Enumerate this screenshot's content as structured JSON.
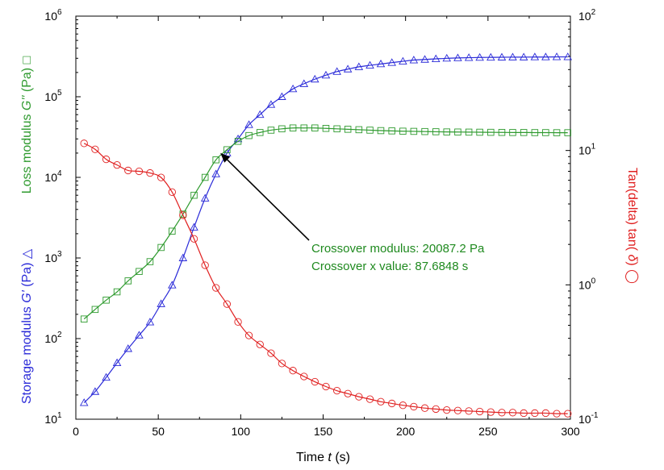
{
  "chart_data": {
    "type": "scatter",
    "x_axis": {
      "label_prefix": "Time ",
      "label_var": "t",
      "label_suffix": " (s)",
      "range": [
        0,
        300
      ],
      "ticks": [
        0,
        50,
        100,
        150,
        200,
        250,
        300
      ],
      "tick_labels": [
        "0",
        "50",
        "100",
        "150",
        "200",
        "250",
        "300"
      ]
    },
    "y_left_axis": {
      "scale": "log",
      "range": [
        10,
        1000000
      ],
      "tick_bases": [
        "10",
        "10",
        "10",
        "10",
        "10",
        "10"
      ],
      "tick_exps": [
        "1",
        "2",
        "3",
        "4",
        "5",
        "6"
      ],
      "label_storage_prefix": "Storage modulus ",
      "label_storage_var": "G'",
      "label_storage_suffix": " (Pa) △",
      "label_loss_prefix": "Loss modulus ",
      "label_loss_var": "G''",
      "label_loss_suffix": " (Pa) □"
    },
    "y_right_axis": {
      "scale": "log",
      "range": [
        0.1,
        100
      ],
      "tick_bases": [
        "10",
        "10",
        "10",
        "10"
      ],
      "tick_exps": [
        "-1",
        "0",
        "1",
        "2"
      ],
      "label_prefix": "Tan(delta) tan( ",
      "label_var": "δ",
      "label_suffix": ")  ◯"
    },
    "series": [
      {
        "marker": "triangle",
        "color": "#2a2ad8",
        "axis": "left",
        "x": [
          5,
          11.7,
          18.4,
          25,
          31.7,
          38.4,
          45,
          51.7,
          58.4,
          65,
          71.7,
          78.4,
          85,
          91.7,
          98.4,
          105,
          111.7,
          118.4,
          125,
          131.7,
          138.4,
          145,
          151.7,
          158.4,
          165,
          171.7,
          178.4,
          185,
          191.7,
          198.4,
          205,
          211.7,
          218.4,
          225,
          231.7,
          238.4,
          245,
          251.7,
          258.4,
          265,
          271.7,
          278.4,
          285,
          291.7,
          298.4
        ],
        "values": [
          16,
          22,
          33,
          50,
          75,
          110,
          160,
          270,
          460,
          1000,
          2400,
          5500,
          11000,
          20000,
          30000,
          45000,
          60000,
          80000,
          100000,
          125000,
          145000,
          165000,
          185000,
          205000,
          220000,
          235000,
          245000,
          255000,
          265000,
          275000,
          285000,
          290000,
          295000,
          300000,
          303000,
          305000,
          307000,
          308000,
          309000,
          310000,
          310000,
          311000,
          311000,
          312000,
          312000
        ]
      },
      {
        "marker": "square",
        "color": "#2e9a2e",
        "axis": "left",
        "x": [
          5,
          11.7,
          18.4,
          25,
          31.7,
          38.4,
          45,
          51.7,
          58.4,
          65,
          71.7,
          78.4,
          85,
          91.7,
          98.4,
          105,
          111.7,
          118.4,
          125,
          131.7,
          138.4,
          145,
          151.7,
          158.4,
          165,
          171.7,
          178.4,
          185,
          191.7,
          198.4,
          205,
          211.7,
          218.4,
          225,
          231.7,
          238.4,
          245,
          251.7,
          258.4,
          265,
          271.7,
          278.4,
          285,
          291.7,
          298.4
        ],
        "values": [
          175,
          230,
          300,
          380,
          520,
          680,
          900,
          1350,
          2150,
          3500,
          6000,
          10000,
          16500,
          22000,
          28000,
          33000,
          36000,
          38500,
          40000,
          41000,
          41000,
          41000,
          40500,
          40000,
          39500,
          39000,
          38500,
          38000,
          37700,
          37400,
          37200,
          37000,
          36800,
          36600,
          36500,
          36400,
          36300,
          36200,
          36100,
          36000,
          36000,
          35900,
          35900,
          35800,
          35800
        ]
      },
      {
        "marker": "circle",
        "color": "#e02020",
        "axis": "right",
        "x": [
          5,
          11.7,
          18.4,
          25,
          31.7,
          38.4,
          45,
          51.7,
          58.4,
          65,
          71.7,
          78.4,
          85,
          91.7,
          98.4,
          105,
          111.7,
          118.4,
          125,
          131.7,
          138.4,
          145,
          151.7,
          158.4,
          165,
          171.7,
          178.4,
          185,
          191.7,
          198.4,
          205,
          211.7,
          218.4,
          225,
          231.7,
          238.4,
          245,
          251.7,
          258.4,
          265,
          271.7,
          278.4,
          285,
          291.7,
          298.4
        ],
        "values": [
          11.3,
          10.2,
          8.6,
          7.8,
          7.1,
          7.0,
          6.8,
          6.3,
          4.9,
          3.3,
          2.2,
          1.4,
          0.95,
          0.72,
          0.53,
          0.42,
          0.36,
          0.31,
          0.26,
          0.23,
          0.208,
          0.19,
          0.175,
          0.163,
          0.155,
          0.147,
          0.141,
          0.135,
          0.131,
          0.127,
          0.124,
          0.121,
          0.119,
          0.117,
          0.116,
          0.115,
          0.114,
          0.113,
          0.112,
          0.112,
          0.111,
          0.111,
          0.111,
          0.11,
          0.11
        ]
      }
    ],
    "crossover": {
      "x": 87.6848,
      "y": 20087.2
    },
    "annotations": {
      "line1": "Crossover modulus: 20087.2 Pa",
      "line2": "Crossover x value: 87.6848 s"
    },
    "colors": {
      "storage": "#2a2ad8",
      "loss": "#2e9a2e",
      "tan": "#e02020",
      "annotation": "#1f8a1f",
      "axis": "#000000"
    },
    "grid": false
  }
}
